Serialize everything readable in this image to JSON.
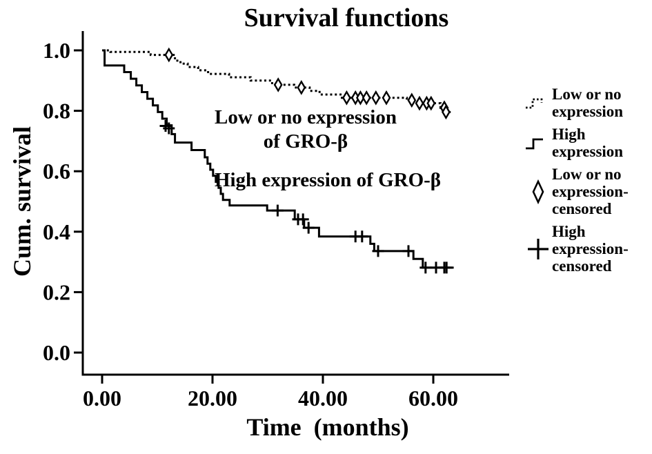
{
  "chart_data": {
    "type": "line",
    "subtype": "kaplan-meier-step-survival",
    "title": "Survival functions",
    "xlabel": "Time  (months)",
    "ylabel": "Cum. survival",
    "xlim": [
      0,
      73.8
    ],
    "ylim": [
      0,
      1.07
    ],
    "grid": false,
    "legend_position": "right",
    "line_color": "#000000",
    "background_color": "#ffffff",
    "x_ticks": [
      {
        "value": 0,
        "label": "0.00"
      },
      {
        "value": 20,
        "label": "20.00"
      },
      {
        "value": 40,
        "label": "40.00"
      },
      {
        "value": 60,
        "label": "60.00"
      }
    ],
    "y_ticks": [
      {
        "value": 0.0,
        "label": "0.0"
      },
      {
        "value": 0.2,
        "label": "0.2"
      },
      {
        "value": 0.4,
        "label": "0.4"
      },
      {
        "value": 0.6,
        "label": "0.6"
      },
      {
        "value": 0.8,
        "label": "0.8"
      },
      {
        "value": 1.0,
        "label": "1.0"
      }
    ],
    "series": [
      {
        "name": "Low or no expression",
        "style": "dotted",
        "censor_marker": "diamond",
        "end": 63.2,
        "points": [
          [
            0,
            1.0
          ],
          [
            1.5,
            0.995
          ],
          [
            8.8,
            0.985
          ],
          [
            13.2,
            0.966
          ],
          [
            14.2,
            0.956
          ],
          [
            15.5,
            0.945
          ],
          [
            17.4,
            0.934
          ],
          [
            19.2,
            0.922
          ],
          [
            23,
            0.911
          ],
          [
            26.9,
            0.9
          ],
          [
            30.8,
            0.886
          ],
          [
            34.8,
            0.877
          ],
          [
            37.6,
            0.866
          ],
          [
            39.4,
            0.854
          ],
          [
            43.2,
            0.843
          ],
          [
            55.2,
            0.835
          ],
          [
            57,
            0.825
          ],
          [
            61.3,
            0.81
          ],
          [
            62.2,
            0.796
          ]
        ],
        "censors": [
          [
            12.1,
            0.985
          ],
          [
            31.9,
            0.886
          ],
          [
            36.1,
            0.877
          ],
          [
            44.3,
            0.843
          ],
          [
            45.9,
            0.843
          ],
          [
            46.8,
            0.843
          ],
          [
            47.9,
            0.843
          ],
          [
            49.6,
            0.843
          ],
          [
            51.5,
            0.843
          ],
          [
            56.1,
            0.835
          ],
          [
            57.5,
            0.825
          ],
          [
            58.8,
            0.825
          ],
          [
            59.6,
            0.825
          ],
          [
            62,
            0.81
          ],
          [
            62.3,
            0.796
          ]
        ]
      },
      {
        "name": "High expression",
        "style": "solid",
        "censor_marker": "plus",
        "end": 63.7,
        "points": [
          [
            0,
            1.0
          ],
          [
            0.45,
            0.95
          ],
          [
            4,
            0.928
          ],
          [
            5.2,
            0.906
          ],
          [
            6.2,
            0.884
          ],
          [
            7.2,
            0.862
          ],
          [
            8.2,
            0.84
          ],
          [
            9.2,
            0.818
          ],
          [
            10.1,
            0.796
          ],
          [
            10.9,
            0.774
          ],
          [
            11.7,
            0.752
          ],
          [
            12.6,
            0.723
          ],
          [
            13.2,
            0.695
          ],
          [
            16.2,
            0.67
          ],
          [
            18.6,
            0.646
          ],
          [
            19.1,
            0.625
          ],
          [
            19.6,
            0.605
          ],
          [
            20.1,
            0.585
          ],
          [
            20.6,
            0.565
          ],
          [
            21.1,
            0.545
          ],
          [
            21.5,
            0.525
          ],
          [
            21.9,
            0.505
          ],
          [
            23.1,
            0.487
          ],
          [
            29.9,
            0.47
          ],
          [
            34.9,
            0.441
          ],
          [
            36.6,
            0.413
          ],
          [
            39.3,
            0.384
          ],
          [
            48.6,
            0.36
          ],
          [
            49.3,
            0.336
          ],
          [
            56.4,
            0.31
          ],
          [
            58.1,
            0.281
          ]
        ],
        "censors": [
          [
            11.5,
            0.75
          ],
          [
            12.1,
            0.742
          ],
          [
            31.8,
            0.47
          ],
          [
            35.5,
            0.441
          ],
          [
            36.4,
            0.441
          ],
          [
            37.4,
            0.413
          ],
          [
            45.9,
            0.384
          ],
          [
            47.1,
            0.384
          ],
          [
            50,
            0.336
          ],
          [
            55.5,
            0.336
          ],
          [
            58.6,
            0.281
          ],
          [
            60.5,
            0.281
          ],
          [
            62,
            0.281
          ],
          [
            62.4,
            0.281
          ]
        ]
      }
    ]
  },
  "annotations": {
    "low": "Low or no expression\nof GRO-β",
    "high": "High expression of GRO-β"
  },
  "legend": {
    "items": [
      {
        "label": "Low or no\nexpression",
        "icon": "dotted-step-line"
      },
      {
        "label": "High\nexpression",
        "icon": "solid-step-line"
      },
      {
        "label": "Low or no\nexpression-\ncensored",
        "icon": "open-diamond"
      },
      {
        "label": "High\nexpression-\ncensored",
        "icon": "plus-cross"
      }
    ]
  }
}
